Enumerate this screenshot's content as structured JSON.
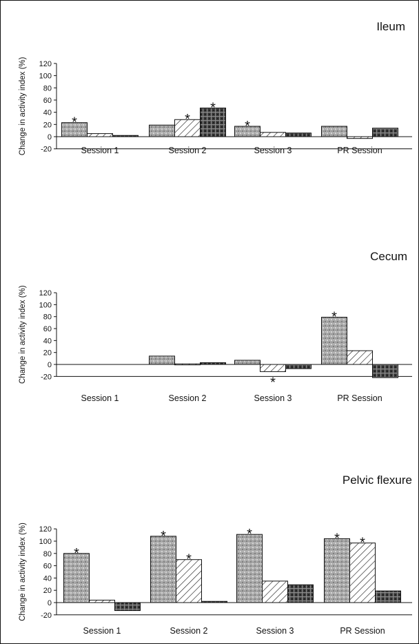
{
  "chart_data": [
    {
      "type": "bar",
      "title": "Ileum",
      "ylabel": "Change in activity index (%)",
      "ylim": [
        -20,
        120
      ],
      "yticks": [
        -20,
        0,
        20,
        40,
        60,
        80,
        100,
        120
      ],
      "categories": [
        "Session 1",
        "Session 2",
        "Session 3",
        "PR Session"
      ],
      "series": [
        {
          "values": [
            23,
            19,
            17,
            17
          ],
          "significant": [
            true,
            false,
            true,
            false
          ]
        },
        {
          "values": [
            5,
            28,
            7,
            -3
          ],
          "significant": [
            false,
            true,
            false,
            false
          ]
        },
        {
          "values": [
            2,
            47,
            6,
            14
          ],
          "significant": [
            false,
            true,
            false,
            false
          ]
        }
      ],
      "annotation": "*"
    },
    {
      "type": "bar",
      "title": "Cecum",
      "ylabel": "Change in activity index (%)",
      "ylim": [
        -20,
        120
      ],
      "yticks": [
        -20,
        0,
        20,
        40,
        60,
        80,
        100,
        120
      ],
      "categories": [
        "Session 1",
        "Session 2",
        "Session 3",
        "PR Session"
      ],
      "series": [
        {
          "values": [
            null,
            14,
            7,
            79
          ],
          "significant": [
            false,
            false,
            false,
            true
          ]
        },
        {
          "values": [
            null,
            1,
            -12,
            23
          ],
          "significant": [
            false,
            false,
            true,
            false
          ]
        },
        {
          "values": [
            null,
            3,
            -7,
            -22
          ],
          "significant": [
            false,
            false,
            false,
            false
          ]
        }
      ],
      "annotation": "*"
    },
    {
      "type": "bar",
      "title": "Pelvic flexure",
      "ylabel": "Change in activity index (%)",
      "ylim": [
        -20,
        120
      ],
      "yticks": [
        -20,
        0,
        20,
        40,
        60,
        80,
        100,
        120
      ],
      "categories": [
        "Session 1",
        "Session 2",
        "Session 3",
        "PR Session"
      ],
      "series": [
        {
          "values": [
            80,
            108,
            111,
            104
          ],
          "significant": [
            true,
            true,
            true,
            true
          ]
        },
        {
          "values": [
            4,
            70,
            35,
            97
          ],
          "significant": [
            false,
            true,
            false,
            true
          ]
        },
        {
          "values": [
            -13,
            2,
            29,
            19
          ],
          "significant": [
            false,
            false,
            false,
            false
          ]
        }
      ],
      "annotation": "*"
    }
  ]
}
